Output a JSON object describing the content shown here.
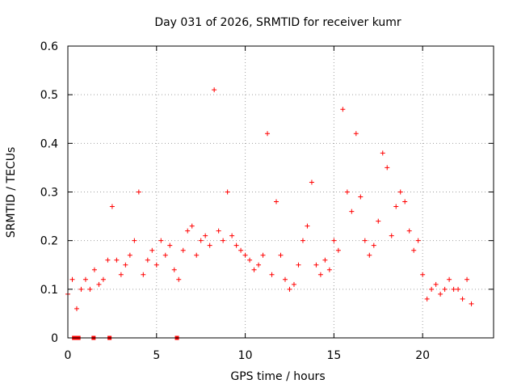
{
  "chart_data": {
    "type": "scatter",
    "title": "Day 031 of 2026, SRMTID for receiver kumr",
    "xlabel": "GPS time / hours",
    "ylabel": "SRMTID / TECUs",
    "xlim": [
      0,
      24
    ],
    "ylim": [
      0,
      0.6
    ],
    "xticks": [
      0,
      5,
      10,
      15,
      20
    ],
    "xtick_labels": [
      "0",
      "5",
      "10",
      "15",
      "20"
    ],
    "yticks": [
      0,
      0.1,
      0.2,
      0.3,
      0.4,
      0.5,
      0.6
    ],
    "ytick_labels": [
      "0",
      "0.1",
      "0.2",
      "0.3",
      "0.4",
      "0.5",
      "0.6"
    ],
    "grid": true,
    "marker": "plus",
    "color": "#ff0000",
    "zero_markers": {
      "marker": "square",
      "x": [
        0.35,
        0.5,
        0.6,
        1.45,
        2.35,
        6.15
      ],
      "y": [
        0,
        0,
        0,
        0,
        0,
        0
      ]
    },
    "series": [
      {
        "name": "SRMTID",
        "x": [
          0.0,
          0.25,
          0.5,
          0.75,
          1.0,
          1.25,
          1.5,
          1.75,
          2.0,
          2.25,
          2.5,
          2.75,
          3.0,
          3.25,
          3.5,
          3.75,
          4.0,
          4.25,
          4.5,
          4.75,
          5.0,
          5.25,
          5.5,
          5.75,
          6.0,
          6.25,
          6.5,
          6.75,
          7.0,
          7.25,
          7.5,
          7.75,
          8.0,
          8.25,
          8.5,
          8.75,
          9.0,
          9.25,
          9.5,
          9.75,
          10.0,
          10.25,
          10.5,
          10.75,
          11.0,
          11.25,
          11.5,
          11.75,
          12.0,
          12.25,
          12.5,
          12.75,
          13.0,
          13.25,
          13.5,
          13.75,
          14.0,
          14.25,
          14.5,
          14.75,
          15.0,
          15.25,
          15.5,
          15.75,
          16.0,
          16.25,
          16.5,
          16.75,
          17.0,
          17.25,
          17.5,
          17.75,
          18.0,
          18.25,
          18.5,
          18.75,
          19.0,
          19.25,
          19.5,
          19.75,
          20.0,
          20.25,
          20.5,
          20.75,
          21.0,
          21.25,
          21.5,
          21.75,
          22.0,
          22.25,
          22.5,
          22.75
        ],
        "y": [
          0.09,
          0.12,
          0.06,
          0.1,
          0.12,
          0.1,
          0.14,
          0.11,
          0.12,
          0.16,
          0.27,
          0.16,
          0.13,
          0.15,
          0.17,
          0.2,
          0.3,
          0.13,
          0.16,
          0.18,
          0.15,
          0.2,
          0.17,
          0.19,
          0.14,
          0.12,
          0.18,
          0.22,
          0.23,
          0.17,
          0.2,
          0.21,
          0.19,
          0.51,
          0.22,
          0.2,
          0.3,
          0.21,
          0.19,
          0.18,
          0.17,
          0.16,
          0.14,
          0.15,
          0.17,
          0.42,
          0.13,
          0.28,
          0.17,
          0.12,
          0.1,
          0.11,
          0.15,
          0.2,
          0.23,
          0.32,
          0.15,
          0.13,
          0.16,
          0.14,
          0.2,
          0.18,
          0.47,
          0.3,
          0.26,
          0.42,
          0.29,
          0.2,
          0.17,
          0.19,
          0.24,
          0.38,
          0.35,
          0.21,
          0.27,
          0.3,
          0.28,
          0.22,
          0.18,
          0.2,
          0.13,
          0.08,
          0.1,
          0.11,
          0.09,
          0.1,
          0.12,
          0.1,
          0.1,
          0.08,
          0.12,
          0.07
        ]
      }
    ]
  }
}
